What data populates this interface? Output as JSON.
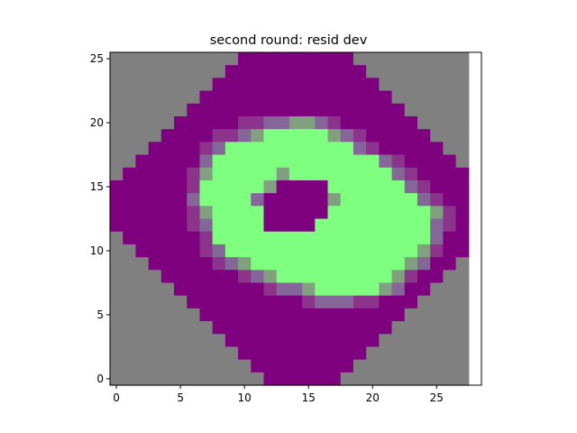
{
  "chart_data": {
    "type": "heatmap",
    "title": "second round: resid dev",
    "xlabel": "",
    "ylabel": "",
    "xlim": [
      -0.5,
      28.5
    ],
    "ylim": [
      -0.5,
      25.5
    ],
    "grid": false,
    "x_ticks": [
      0,
      5,
      10,
      15,
      20,
      25
    ],
    "y_ticks": [
      0,
      5,
      10,
      15,
      20,
      25
    ],
    "origin": "lower",
    "palette": {
      "0": "#808080",
      "1": "#7f007f",
      "2": "#8c338c",
      "3": "#856699",
      "4": "#80a080",
      "5": "#7fff7f"
    },
    "legend_levels": {
      "0": "background (gray)",
      "1": "purple",
      "2": "purple-light",
      "3": "purple-green blend",
      "4": "gray-green",
      "5": "green"
    },
    "rows_top_to_bottom": [
      "0000000000111111111000000000",
      "0000000001111111111100000000",
      "0000000011111111111110000000",
      "0000000111111111111111000000",
      "0000001111111111111111100000",
      "0000011111223344321111110000",
      "0000111122345555543211111000",
      "0001111235555555555321111100",
      "0011111355555555555553211110",
      "0111112455555455555555321111",
      "1111112555554111155555532111",
      "1111113555531111145555553211",
      "1111112455551111155555555421",
      "1111112355551111555555555321",
      "0111111255555555555555555311",
      "0011111235555555555555554211",
      "0001111123455555555555543110",
      "0000111111234555555555421100",
      "0000011111112334555554311000",
      "0000001111111112333221110000",
      "0000000111111111111111100000",
      "0000000011111111111111000000",
      "0000000001111111111110000000",
      "0000000000111111111100000000",
      "0000000000011111111000000000",
      "0000000000001111110000000000"
    ]
  }
}
